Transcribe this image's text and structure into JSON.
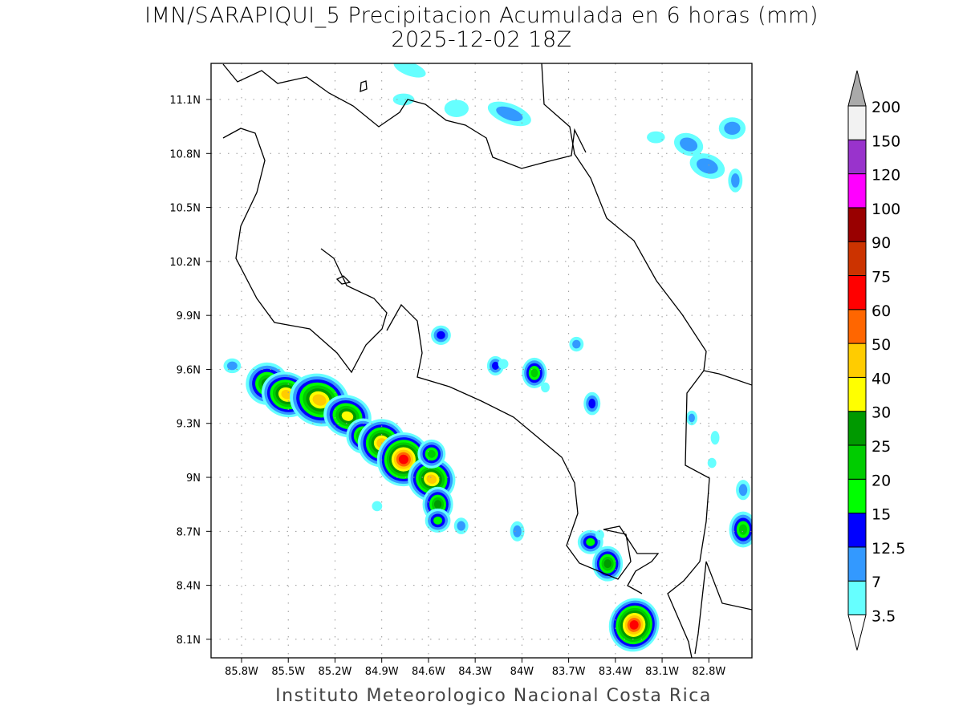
{
  "title": "IMN/SARAPIQUI_5 Precipitacion Acumulada en 6 horas (mm)",
  "subtitle": "2025-12-02 18Z",
  "footer": "Instituto Meteorologico Nacional Costa Rica",
  "map": {
    "lon_range": [
      -86.0,
      -82.5
    ],
    "lat_range": [
      8.0,
      11.3
    ],
    "lon_ticks": [
      "85.8W",
      "85.5W",
      "85.2W",
      "84.9W",
      "84.6W",
      "84.3W",
      "84W",
      "83.7W",
      "83.4W",
      "83.1W",
      "82.8W"
    ],
    "lon_tick_values": [
      -85.8,
      -85.5,
      -85.2,
      -84.9,
      -84.6,
      -84.3,
      -84.0,
      -83.7,
      -83.4,
      -83.1,
      -82.8
    ],
    "lat_ticks": [
      "11.1N",
      "10.8N",
      "10.5N",
      "10.2N",
      "9.9N",
      "9.6N",
      "9.3N",
      "9N",
      "8.7N",
      "8.4N",
      "8.1N"
    ],
    "lat_tick_values": [
      11.1,
      10.8,
      10.5,
      10.2,
      9.9,
      9.6,
      9.3,
      9.0,
      8.7,
      8.4,
      8.1
    ]
  },
  "colorbar": {
    "labels": [
      "3.5",
      "7",
      "12.5",
      "15",
      "20",
      "25",
      "30",
      "40",
      "50",
      "60",
      "75",
      "90",
      "100",
      "120",
      "150",
      "200"
    ],
    "levels": [
      3.5,
      7,
      12.5,
      15,
      20,
      25,
      30,
      40,
      50,
      60,
      75,
      90,
      100,
      120,
      150,
      200
    ],
    "colors": [
      "#66ffff",
      "#3399ff",
      "#0000ff",
      "#00ff00",
      "#00cc00",
      "#009900",
      "#ffff00",
      "#ffcc00",
      "#ff6600",
      "#ff0000",
      "#cc3300",
      "#990000",
      "#ff00ff",
      "#9933cc",
      "#f2f2f2"
    ],
    "over_color": "#aaaaaa",
    "under_color": "#ffffff"
  },
  "precip_cells": [
    {
      "lon": -85.635,
      "lat": 9.52,
      "peak": 25,
      "rx": 0.09,
      "ry": 0.07
    },
    {
      "lon": -85.51,
      "lat": 9.46,
      "peak": 40,
      "rx": 0.1,
      "ry": 0.06
    },
    {
      "lon": -85.3,
      "lat": 9.43,
      "peak": 40,
      "rx": 0.13,
      "ry": 0.08
    },
    {
      "lon": -85.12,
      "lat": 9.34,
      "peak": 30,
      "rx": 0.1,
      "ry": 0.06
    },
    {
      "lon": -85.02,
      "lat": 9.23,
      "peak": 25,
      "rx": 0.06,
      "ry": 0.05
    },
    {
      "lon": -84.9,
      "lat": 9.19,
      "peak": 40,
      "rx": 0.09,
      "ry": 0.07
    },
    {
      "lon": -84.76,
      "lat": 9.1,
      "peak": 60,
      "rx": 0.09,
      "ry": 0.07
    },
    {
      "lon": -84.58,
      "lat": 8.99,
      "peak": 40,
      "rx": 0.09,
      "ry": 0.06
    },
    {
      "lon": -84.58,
      "lat": 9.13,
      "peak": 20,
      "rx": 0.05,
      "ry": 0.04
    },
    {
      "lon": -84.54,
      "lat": 8.85,
      "peak": 25,
      "rx": 0.05,
      "ry": 0.05
    },
    {
      "lon": -84.54,
      "lat": 8.76,
      "peak": 15,
      "rx": 0.05,
      "ry": 0.035
    },
    {
      "lon": -83.28,
      "lat": 8.18,
      "peak": 60,
      "rx": 0.08,
      "ry": 0.07
    },
    {
      "lon": -83.45,
      "lat": 8.52,
      "peak": 25,
      "rx": 0.05,
      "ry": 0.05
    },
    {
      "lon": -83.56,
      "lat": 8.64,
      "peak": 15,
      "rx": 0.05,
      "ry": 0.035
    },
    {
      "lon": -83.92,
      "lat": 9.58,
      "peak": 20,
      "rx": 0.04,
      "ry": 0.045
    },
    {
      "lon": -84.17,
      "lat": 9.62,
      "peak": 12.5,
      "rx": 0.03,
      "ry": 0.03
    },
    {
      "lon": -84.52,
      "lat": 9.79,
      "peak": 12.5,
      "rx": 0.04,
      "ry": 0.03
    },
    {
      "lon": -83.55,
      "lat": 9.41,
      "peak": 12.5,
      "rx": 0.03,
      "ry": 0.04
    },
    {
      "lon": -83.65,
      "lat": 9.74,
      "peak": 7,
      "rx": 0.03,
      "ry": 0.025
    },
    {
      "lon": -82.58,
      "lat": 8.71,
      "peak": 20,
      "rx": 0.05,
      "ry": 0.06
    },
    {
      "lon": -82.58,
      "lat": 8.93,
      "peak": 7,
      "rx": 0.03,
      "ry": 0.04
    },
    {
      "lon": -84.03,
      "lat": 8.7,
      "peak": 7,
      "rx": 0.03,
      "ry": 0.04
    },
    {
      "lon": -84.39,
      "lat": 8.73,
      "peak": 7,
      "rx": 0.03,
      "ry": 0.03
    },
    {
      "lon": -84.08,
      "lat": 11.02,
      "peak": 7,
      "rx": 0.13,
      "ry": 0.04
    },
    {
      "lon": -82.81,
      "lat": 10.73,
      "peak": 7,
      "rx": 0.1,
      "ry": 0.05
    },
    {
      "lon": -82.93,
      "lat": 10.85,
      "peak": 7,
      "rx": 0.08,
      "ry": 0.045
    },
    {
      "lon": -82.65,
      "lat": 10.94,
      "peak": 7,
      "rx": 0.07,
      "ry": 0.045
    },
    {
      "lon": -82.63,
      "lat": 10.65,
      "peak": 7,
      "rx": 0.03,
      "ry": 0.05
    },
    {
      "lon": -84.72,
      "lat": 11.27,
      "peak": 3.5,
      "rx": 0.1,
      "ry": 0.03
    },
    {
      "lon": -84.42,
      "lat": 11.05,
      "peak": 3.5,
      "rx": 0.07,
      "ry": 0.04
    },
    {
      "lon": -84.76,
      "lat": 11.1,
      "peak": 3.5,
      "rx": 0.06,
      "ry": 0.025
    },
    {
      "lon": -83.14,
      "lat": 10.89,
      "peak": 3.5,
      "rx": 0.05,
      "ry": 0.025
    },
    {
      "lon": -85.86,
      "lat": 9.62,
      "peak": 7,
      "rx": 0.04,
      "ry": 0.025
    },
    {
      "lon": -82.91,
      "lat": 9.33,
      "peak": 7,
      "rx": 0.02,
      "ry": 0.025
    },
    {
      "lon": -82.76,
      "lat": 9.22,
      "peak": 3.5,
      "rx": 0.02,
      "ry": 0.03
    },
    {
      "lon": -82.78,
      "lat": 9.08,
      "peak": 3.5,
      "rx": 0.02,
      "ry": 0.02
    },
    {
      "lon": -84.93,
      "lat": 8.84,
      "peak": 3.5,
      "rx": 0.025,
      "ry": 0.02
    },
    {
      "lon": -83.5,
      "lat": 8.68,
      "peak": 3.5,
      "rx": 0.02,
      "ry": 0.02
    },
    {
      "lon": -84.12,
      "lat": 9.63,
      "peak": 3.5,
      "rx": 0.025,
      "ry": 0.02
    },
    {
      "lon": -83.85,
      "lat": 9.5,
      "peak": 3.5,
      "rx": 0.02,
      "ry": 0.02
    }
  ]
}
